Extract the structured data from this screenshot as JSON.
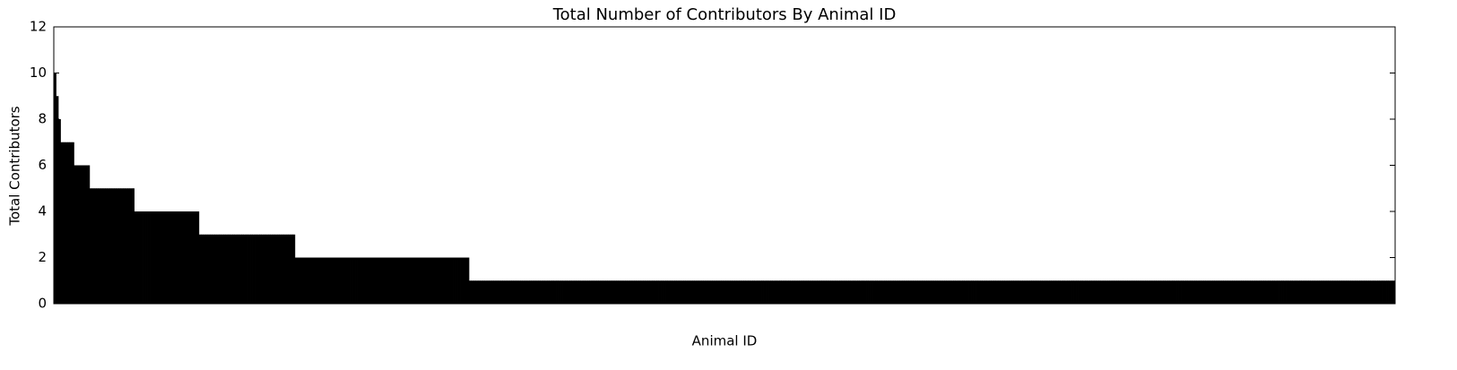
{
  "chart_data": {
    "type": "bar",
    "title": "Total Number of Contributors By Animal ID",
    "xlabel": "Animal ID",
    "ylabel": "Total Contributors",
    "color": "#000000",
    "ylim": [
      0,
      12
    ],
    "yticks": [
      0,
      2,
      4,
      6,
      8,
      10,
      12
    ],
    "grid": false,
    "values": [
      10,
      9,
      8,
      7,
      7,
      7,
      7,
      7,
      7,
      6,
      6,
      6,
      6,
      6,
      6,
      6,
      5,
      5,
      5,
      5,
      5,
      5,
      5,
      5,
      5,
      5,
      5,
      5,
      5,
      5,
      5,
      5,
      5,
      5,
      5,
      5,
      4,
      4,
      4,
      4,
      4,
      4,
      4,
      4,
      4,
      4,
      4,
      4,
      4,
      4,
      4,
      4,
      4,
      4,
      4,
      4,
      4,
      4,
      4,
      4,
      4,
      4,
      4,
      4,
      4,
      3,
      3,
      3,
      3,
      3,
      3,
      3,
      3,
      3,
      3,
      3,
      3,
      3,
      3,
      3,
      3,
      3,
      3,
      3,
      3,
      3,
      3,
      3,
      3,
      3,
      3,
      3,
      3,
      3,
      3,
      3,
      3,
      3,
      3,
      3,
      3,
      3,
      3,
      3,
      3,
      3,
      3,
      3,
      2,
      2,
      2,
      2,
      2,
      2,
      2,
      2,
      2,
      2,
      2,
      2,
      2,
      2,
      2,
      2,
      2,
      2,
      2,
      2,
      2,
      2,
      2,
      2,
      2,
      2,
      2,
      2,
      2,
      2,
      2,
      2,
      2,
      2,
      2,
      2,
      2,
      2,
      2,
      2,
      2,
      2,
      2,
      2,
      2,
      2,
      2,
      2,
      2,
      2,
      2,
      2,
      2,
      2,
      2,
      2,
      2,
      2,
      2,
      2,
      2,
      2,
      2,
      2,
      2,
      2,
      2,
      2,
      2,
      2,
      2,
      2,
      2,
      2,
      2,
      2,
      2,
      2,
      1,
      1,
      1,
      1,
      1,
      1,
      1,
      1,
      1,
      1,
      1,
      1,
      1,
      1,
      1,
      1,
      1,
      1,
      1,
      1,
      1,
      1,
      1,
      1,
      1,
      1,
      1,
      1,
      1,
      1,
      1,
      1,
      1,
      1,
      1,
      1,
      1,
      1,
      1,
      1,
      1,
      1,
      1,
      1,
      1,
      1,
      1,
      1,
      1,
      1,
      1,
      1,
      1,
      1,
      1,
      1,
      1,
      1,
      1,
      1,
      1,
      1,
      1,
      1,
      1,
      1,
      1,
      1,
      1,
      1,
      1,
      1,
      1,
      1,
      1,
      1,
      1,
      1,
      1,
      1,
      1,
      1,
      1,
      1,
      1,
      1,
      1,
      1,
      1,
      1,
      1,
      1,
      1,
      1,
      1,
      1,
      1,
      1,
      1,
      1,
      1,
      1,
      1,
      1,
      1,
      1,
      1,
      1,
      1,
      1,
      1,
      1,
      1,
      1,
      1,
      1,
      1,
      1,
      1,
      1,
      1,
      1,
      1,
      1,
      1,
      1,
      1,
      1,
      1,
      1,
      1,
      1,
      1,
      1,
      1,
      1,
      1,
      1,
      1,
      1,
      1,
      1,
      1,
      1,
      1,
      1,
      1,
      1,
      1,
      1,
      1,
      1,
      1,
      1,
      1,
      1,
      1,
      1,
      1,
      1,
      1,
      1,
      1,
      1,
      1,
      1,
      1,
      1,
      1,
      1,
      1,
      1,
      1,
      1,
      1,
      1,
      1,
      1,
      1,
      1,
      1,
      1,
      1,
      1,
      1,
      1,
      1,
      1,
      1,
      1,
      1,
      1,
      1,
      1,
      1,
      1,
      1,
      1,
      1,
      1,
      1,
      1,
      1,
      1,
      1,
      1,
      1,
      1,
      1,
      1,
      1,
      1,
      1,
      1,
      1,
      1,
      1,
      1,
      1,
      1,
      1,
      1,
      1,
      1,
      1,
      1,
      1,
      1,
      1,
      1,
      1,
      1,
      1,
      1,
      1,
      1,
      1,
      1,
      1,
      1,
      1,
      1,
      1,
      1,
      1,
      1,
      1,
      1,
      1,
      1,
      1,
      1,
      1,
      1,
      1,
      1,
      1,
      1,
      1,
      1,
      1,
      1,
      1,
      1,
      1,
      1,
      1,
      1,
      1,
      1,
      1,
      1,
      1,
      1,
      1,
      1,
      1,
      1,
      1,
      1,
      1,
      1,
      1,
      1,
      1,
      1,
      1,
      1,
      1,
      1,
      1,
      1,
      1,
      1,
      1,
      1,
      1,
      1,
      1,
      1,
      1,
      1,
      1,
      1,
      1,
      1,
      1,
      1,
      1,
      1,
      1,
      1,
      1,
      1,
      1,
      1,
      1,
      1,
      1,
      1,
      1,
      1,
      1,
      1,
      1,
      1,
      1,
      1,
      1,
      1,
      1,
      1,
      1,
      1,
      1,
      1,
      1,
      1,
      1,
      1,
      1,
      1,
      1,
      1,
      1,
      1,
      1,
      1,
      1,
      1,
      1,
      1,
      1,
      1,
      1,
      1,
      1,
      1,
      1,
      1,
      1,
      1,
      1,
      1,
      1,
      1,
      1,
      1,
      1,
      1,
      1,
      1,
      1,
      1,
      1,
      1,
      1,
      1,
      1,
      1,
      1,
      1,
      1,
      1,
      1,
      1,
      1,
      1,
      1,
      1,
      1,
      1,
      1,
      1,
      1,
      1,
      1,
      1,
      1,
      1,
      1,
      1,
      1,
      1,
      1,
      1,
      1,
      1,
      1,
      1,
      1,
      1,
      1,
      1,
      1
    ]
  }
}
